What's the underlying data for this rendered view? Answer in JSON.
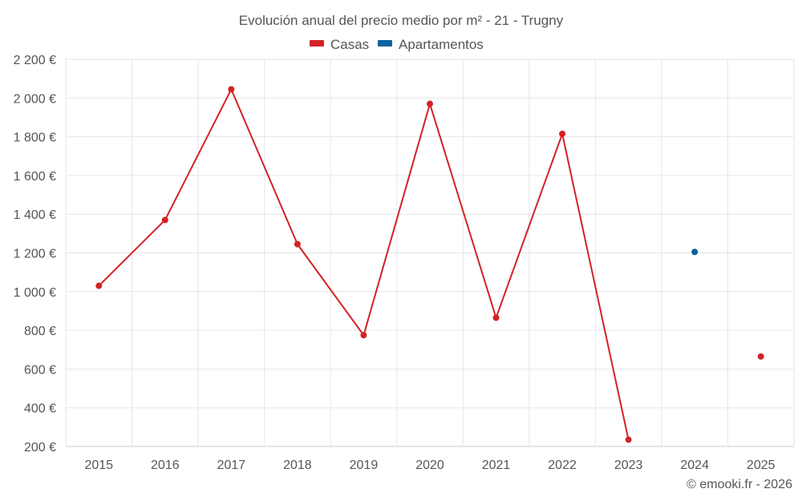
{
  "chart_data": {
    "type": "line",
    "title": "Evolución anual del precio medio por m² - 21 - Trugny",
    "categories": [
      "2015",
      "2016",
      "2017",
      "2018",
      "2019",
      "2020",
      "2021",
      "2022",
      "2023",
      "2024",
      "2025"
    ],
    "series": [
      {
        "name": "Casas",
        "color": "#d42226",
        "values": [
          1030,
          1370,
          2045,
          1245,
          775,
          1970,
          865,
          1815,
          235,
          null,
          665
        ]
      },
      {
        "name": "Apartamentos",
        "color": "#0a63a0",
        "values": [
          null,
          null,
          null,
          null,
          null,
          null,
          null,
          null,
          null,
          1205,
          null
        ]
      }
    ],
    "ylim": [
      200,
      2200
    ],
    "yticks": [
      200,
      400,
      600,
      800,
      1000,
      1200,
      1400,
      1600,
      1800,
      2000,
      2200
    ],
    "ytick_labels": [
      "200 €",
      "400 €",
      "600 €",
      "800 €",
      "1 000 €",
      "1 200 €",
      "1 400 €",
      "1 600 €",
      "1 800 €",
      "2 000 €",
      "2 200 €"
    ],
    "xlabel": "",
    "ylabel": "",
    "grid": true,
    "legend_position": "top-center"
  },
  "credit": "© emooki.fr - 2026"
}
